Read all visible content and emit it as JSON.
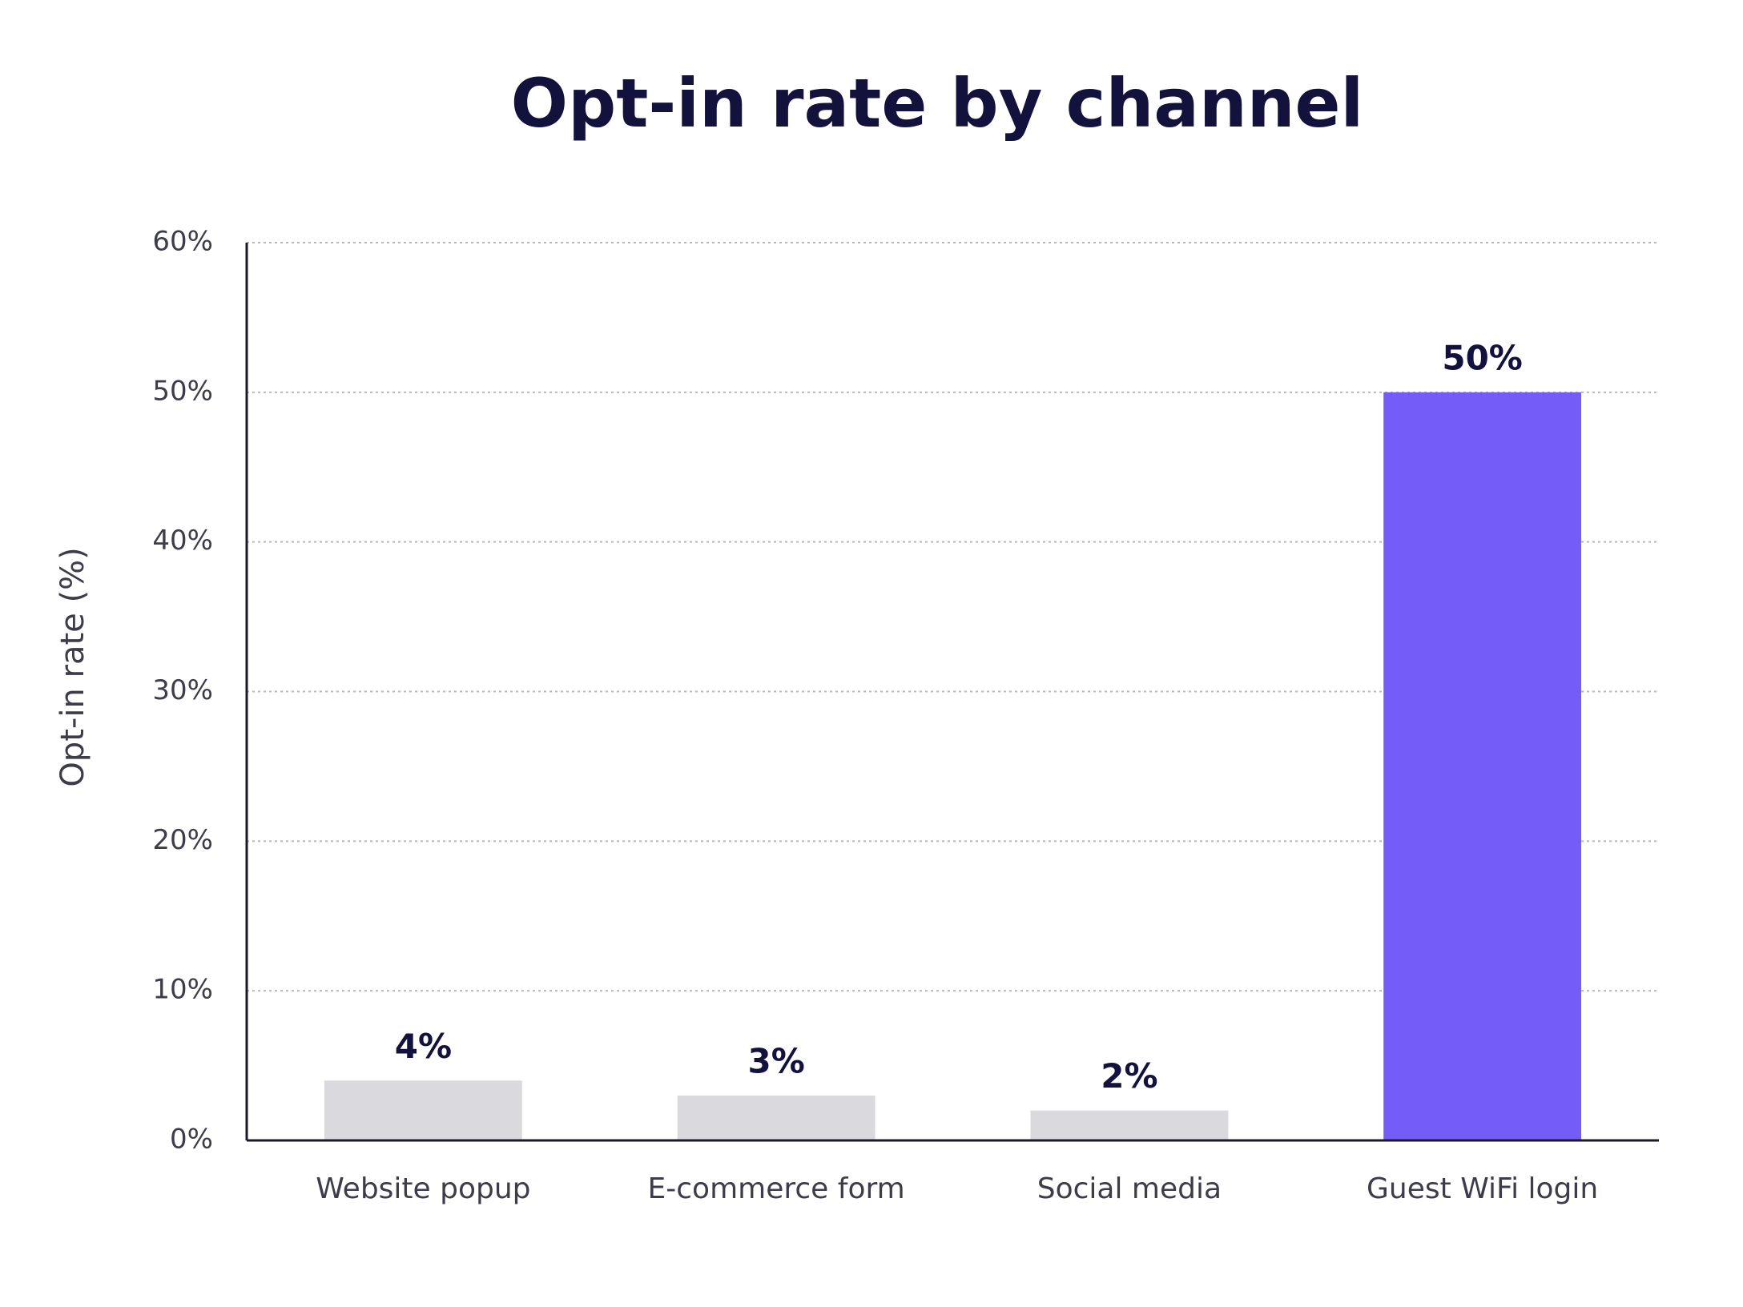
{
  "chart_data": {
    "type": "bar",
    "title": "Opt-in rate by channel",
    "y_label": "Opt-in rate (%)",
    "categories": [
      "Website popup",
      "E-commerce form",
      "Social media",
      "Guest WiFi login"
    ],
    "values": [
      4,
      3,
      2,
      50
    ],
    "value_labels": [
      "4%",
      "3%",
      "2%",
      "50%"
    ],
    "colors": [
      "#d9d9de",
      "#d9d9de",
      "#d9d9de",
      "#735cf7"
    ],
    "ylim": [
      0,
      60
    ],
    "yticks": [
      {
        "value": 0,
        "label": "0%"
      },
      {
        "value": 10,
        "label": "10%"
      },
      {
        "value": 20,
        "label": "20%"
      },
      {
        "value": 30,
        "label": "30%"
      },
      {
        "value": 40,
        "label": "40%"
      },
      {
        "value": 50,
        "label": "50%"
      },
      {
        "value": 60,
        "label": "60%"
      }
    ],
    "grid": true
  }
}
